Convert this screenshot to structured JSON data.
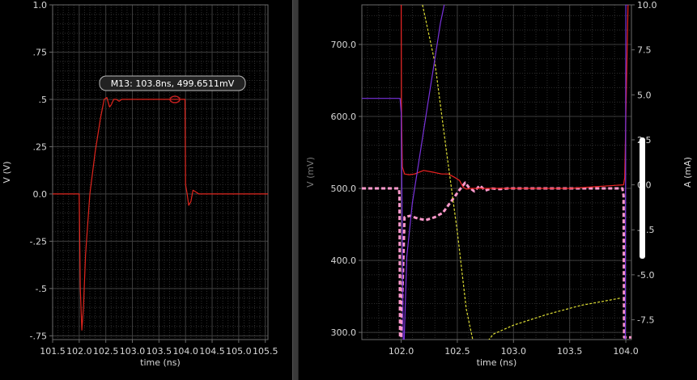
{
  "colors": {
    "background": "#000000",
    "grid": "#3c3c3c",
    "frame": "#6a6a6a",
    "text": "#d8d8d8",
    "divider": "#3a3a3a",
    "left_trace": "#e0251d",
    "marker_box_bg": "#222222",
    "marker_box_border": "#bbbbbb"
  },
  "chart_data": [
    {
      "type": "line",
      "title": "",
      "xlabel": "time (ns)",
      "ylabel": "V (V)",
      "xlim": [
        101.5,
        105.55
      ],
      "ylim": [
        -0.77,
        1.0
      ],
      "x_ticks": [
        101.5,
        102.0,
        102.5,
        103.0,
        103.5,
        104.0,
        104.5,
        105.0,
        105.5
      ],
      "x_tick_labels": [
        "101.5",
        "102.0",
        "102.5",
        "103.0",
        "103.5",
        "104.0",
        "104.5",
        "105.0",
        "105.5"
      ],
      "y_ticks": [
        1.0,
        0.75,
        0.5,
        0.25,
        0.0,
        -0.25,
        -0.5,
        -0.75
      ],
      "y_tick_labels": [
        "1.0",
        ".75",
        ".5",
        ".25",
        "0.0",
        "-.25",
        "-.5",
        "-.75"
      ],
      "grid": true,
      "series": [
        {
          "color": "#e0251d",
          "x": [
            101.5,
            102.0,
            102.02,
            102.05,
            102.08,
            102.12,
            102.2,
            102.3,
            102.4,
            102.47,
            102.52,
            102.57,
            102.6,
            102.65,
            102.7,
            102.75,
            102.8,
            102.9,
            103.0,
            103.5,
            103.99,
            104.0,
            104.03,
            104.06,
            104.1,
            104.14,
            104.2,
            104.25,
            104.3,
            104.4,
            104.6,
            105.55
          ],
          "y": [
            0.0,
            0.0,
            -0.5,
            -0.72,
            -0.6,
            -0.32,
            0.0,
            0.22,
            0.4,
            0.5,
            0.51,
            0.46,
            0.47,
            0.5,
            0.5,
            0.49,
            0.5,
            0.5,
            0.5,
            0.5,
            0.5,
            0.05,
            0.0,
            -0.06,
            -0.04,
            0.02,
            0.01,
            0.0,
            0.0,
            0.0,
            0.0,
            0.0
          ]
        }
      ],
      "marker": {
        "label": "M13: 103.8ns, 499.6511mV",
        "x": 103.8,
        "y": 0.4997
      }
    },
    {
      "type": "line",
      "title": "",
      "xlabel": "time (ns)",
      "ylabel": "V (mV)",
      "y2label": "A (mA)",
      "xlim": [
        101.65,
        104.05
      ],
      "ylim": [
        290,
        755
      ],
      "y2lim": [
        -8.6,
        10.0
      ],
      "x_ticks": [
        102.0,
        102.5,
        103.0,
        103.5,
        104.0
      ],
      "x_tick_labels": [
        "102.0",
        "102.5",
        "103.0",
        "103.5",
        "104.0"
      ],
      "y_ticks": [
        300,
        400,
        500,
        600,
        700
      ],
      "y_tick_labels": [
        "300.0",
        "400.0",
        "500.0",
        "600.0",
        "700.0"
      ],
      "y2_ticks": [
        -7.5,
        -5.0,
        -2.5,
        0.0,
        2.5,
        5.0,
        7.5,
        10.0
      ],
      "y2_tick_labels": [
        "-7.5",
        "-5.0",
        "-2.5",
        "0.0",
        "2.5",
        "5.0",
        "7.5",
        "10.0"
      ],
      "grid": true,
      "series": [
        {
          "axis": "left",
          "color": "#ff99cc",
          "style": "dashed",
          "x": [
            101.65,
            101.98,
            101.985,
            101.99,
            102.0,
            102.03,
            102.08,
            102.15,
            102.22,
            102.3,
            102.37,
            102.45,
            102.52,
            102.57,
            102.6,
            102.65,
            102.7,
            102.75,
            102.8,
            102.88,
            102.95,
            103.05,
            103.5,
            103.97,
            103.98,
            103.985,
            103.995,
            104.05
          ],
          "y": [
            500.0,
            500.0,
            490.0,
            293.0,
            293.0,
            460.0,
            462.0,
            458.0,
            456.0,
            460.0,
            466.0,
            483.0,
            498.0,
            508.0,
            502.0,
            496.0,
            504.0,
            497.0,
            500.0,
            499.0,
            500.0,
            500.0,
            500.0,
            500.0,
            490.0,
            293.0,
            293.0,
            293.0
          ]
        },
        {
          "axis": "left",
          "color": "#ee2222",
          "x": [
            102.0,
            102.003,
            102.01,
            102.03,
            102.07,
            102.12,
            102.2,
            102.3,
            102.36,
            102.42,
            102.48,
            102.52,
            102.55,
            102.58,
            102.62,
            102.7,
            103.0,
            103.5,
            103.98,
            103.99,
            104.0,
            104.02
          ],
          "y": [
            755.0,
            600.0,
            530.0,
            520.0,
            519.0,
            520.0,
            525.0,
            522.0,
            520.0,
            520.0,
            515.0,
            511.0,
            502.0,
            499.0,
            500.0,
            500.0,
            500.0,
            500.0,
            505.0,
            515.0,
            600.0,
            755.0
          ]
        },
        {
          "axis": "right",
          "color": "#dddd33",
          "x": [
            102.19,
            102.3,
            102.4,
            102.5,
            102.58,
            102.65,
            102.72,
            102.74,
            102.77,
            102.82,
            103.0,
            103.3,
            103.6,
            103.95
          ],
          "y": [
            10.0,
            6.8,
            2.0,
            -2.6,
            -6.9,
            -9.0,
            -9.4,
            -9.3,
            -8.7,
            -8.3,
            -7.8,
            -7.2,
            -6.7,
            -6.3
          ]
        },
        {
          "axis": "right",
          "color": "#7a33dd",
          "x": [
            101.65,
            101.99,
            102.0,
            102.02,
            102.05,
            102.1,
            102.15,
            102.2,
            102.25,
            102.3,
            102.35,
            102.4
          ],
          "y": [
            4.8,
            4.8,
            4.0,
            -10.0,
            -4.0,
            -1.0,
            1.0,
            3.0,
            5.0,
            7.0,
            9.0,
            10.5
          ]
        },
        {
          "axis": "right",
          "color": "#7a33dd",
          "x": [
            103.995,
            104.0,
            104.02
          ],
          "y": [
            -8.6,
            10.0,
            10.0
          ]
        }
      ]
    }
  ]
}
